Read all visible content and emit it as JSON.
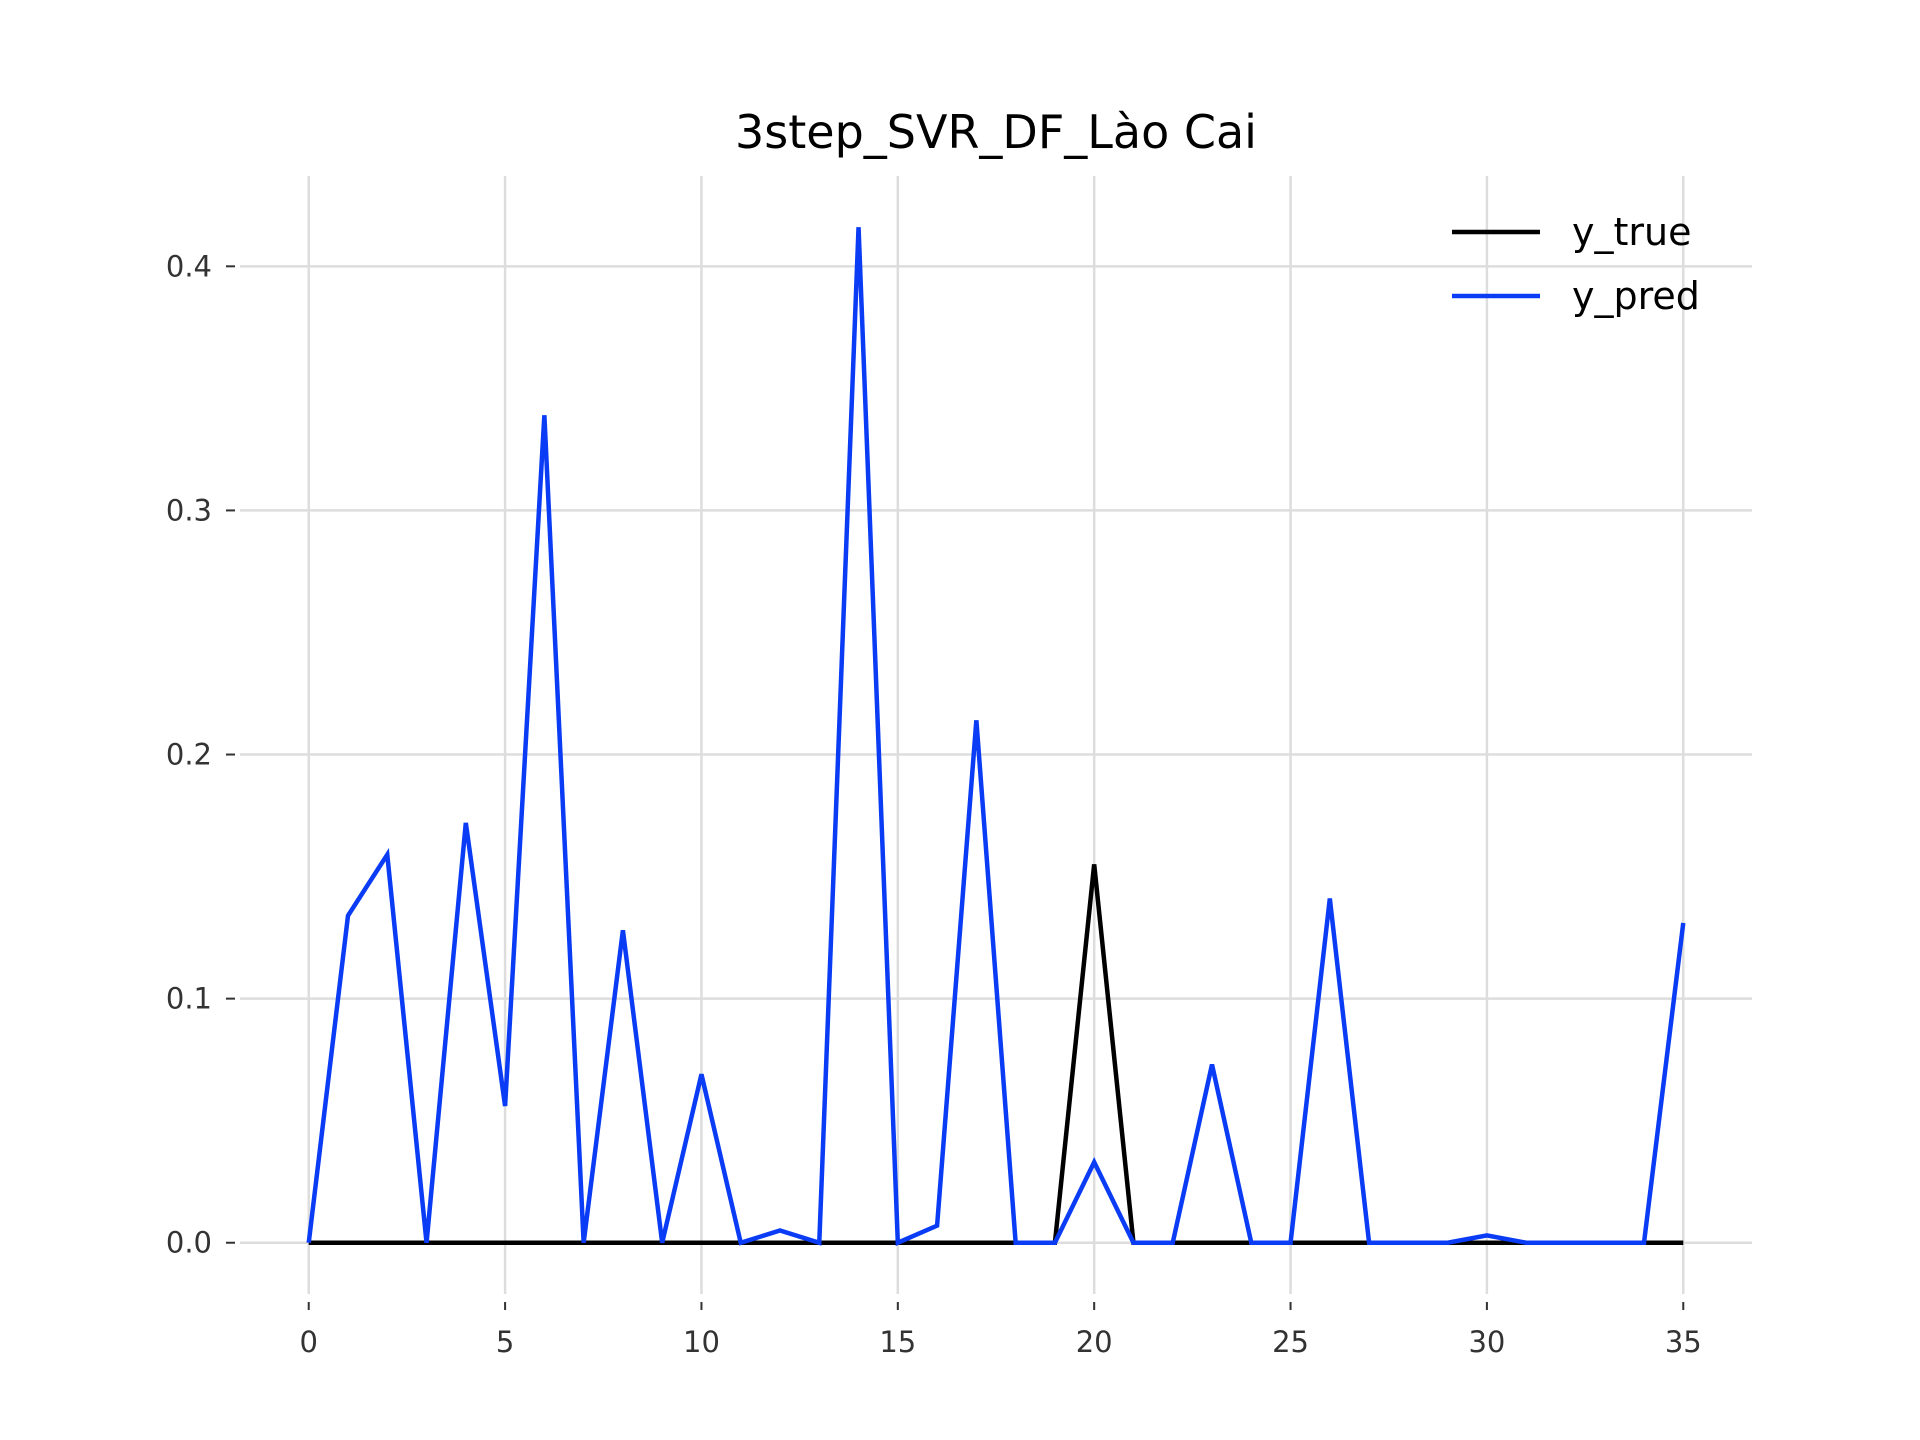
{
  "chart_data": {
    "type": "line",
    "title": "3step_SVR_DF_Lào Cai",
    "xlabel": "",
    "ylabel": "",
    "x": [
      0,
      1,
      2,
      3,
      4,
      5,
      6,
      7,
      8,
      9,
      10,
      11,
      12,
      13,
      14,
      15,
      16,
      17,
      18,
      19,
      20,
      21,
      22,
      23,
      24,
      25,
      26,
      27,
      28,
      29,
      30,
      31,
      32,
      33,
      34,
      35
    ],
    "xlim": [
      -1.75,
      36.75
    ],
    "ylim": [
      -0.021,
      0.437
    ],
    "xticks": [
      "0",
      "5",
      "10",
      "15",
      "20",
      "25",
      "30",
      "35"
    ],
    "xtick_values": [
      0,
      5,
      10,
      15,
      20,
      25,
      30,
      35
    ],
    "yticks": [
      "0.0",
      "0.1",
      "0.2",
      "0.3",
      "0.4"
    ],
    "ytick_values": [
      0.0,
      0.1,
      0.2,
      0.3,
      0.4
    ],
    "grid": true,
    "legend_position": "top-right",
    "series": [
      {
        "name": "y_true",
        "color": "#000000",
        "values": [
          0,
          0,
          0,
          0,
          0,
          0,
          0,
          0,
          0,
          0,
          0,
          0,
          0,
          0,
          0,
          0,
          0,
          0,
          0,
          0,
          0.155,
          0,
          0,
          0,
          0,
          0,
          0,
          0,
          0,
          0,
          0,
          0,
          0,
          0,
          0,
          0
        ]
      },
      {
        "name": "y_pred",
        "color": "#0a3cf5",
        "values": [
          0,
          0.134,
          0.159,
          0,
          0.172,
          0.056,
          0.339,
          0,
          0.128,
          0,
          0.069,
          0,
          0.005,
          0,
          0.416,
          0,
          0.007,
          0.214,
          0,
          0,
          0.033,
          0,
          0,
          0.073,
          0,
          0,
          0.141,
          0,
          0,
          0,
          0.003,
          0,
          0,
          0,
          0,
          0.131
        ]
      }
    ]
  }
}
